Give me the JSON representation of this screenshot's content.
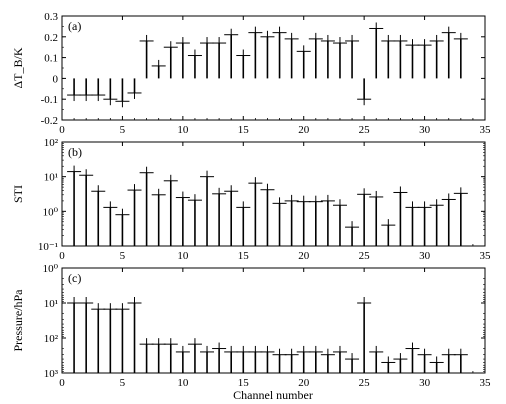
{
  "chart_data": [
    {
      "type": "bar",
      "panel_label": "(a)",
      "ylabel": "ΔT_B/K",
      "xlim": [
        0,
        35
      ],
      "ylim": [
        -0.2,
        0.3
      ],
      "yscale": "linear",
      "xticks": [
        0,
        5,
        10,
        15,
        20,
        25,
        30,
        35
      ],
      "yticks": [
        -0.2,
        -0.1,
        0,
        0.1,
        0.2,
        0.3
      ],
      "ytick_labels": [
        "-0.2",
        "-0.1",
        "0",
        "0.1",
        "0.2",
        "0.3"
      ],
      "x": [
        1,
        2,
        3,
        4,
        5,
        6,
        7,
        8,
        9,
        10,
        11,
        12,
        13,
        14,
        15,
        16,
        17,
        18,
        19,
        20,
        21,
        22,
        23,
        24,
        25,
        26,
        27,
        28,
        29,
        30,
        31,
        32,
        33
      ],
      "values": [
        -0.08,
        -0.08,
        -0.08,
        -0.1,
        -0.11,
        -0.07,
        0.18,
        0.06,
        0.15,
        0.17,
        0.11,
        0.17,
        0.17,
        0.21,
        0.11,
        0.22,
        0.2,
        0.22,
        0.19,
        0.13,
        0.19,
        0.18,
        0.17,
        0.18,
        -0.1,
        0.24,
        0.18,
        0.18,
        0.16,
        0.16,
        0.18,
        0.22,
        0.19
      ]
    },
    {
      "type": "bar",
      "panel_label": "(b)",
      "ylabel": "STI",
      "xlim": [
        0,
        35
      ],
      "ylim": [
        0.1,
        100
      ],
      "yscale": "log",
      "xticks": [
        0,
        5,
        10,
        15,
        20,
        25,
        30,
        35
      ],
      "yticks": [
        0.1,
        1,
        10,
        100
      ],
      "ytick_labels": [
        "10⁻¹",
        "10⁰",
        "10¹",
        "10²"
      ],
      "x": [
        1,
        2,
        3,
        4,
        5,
        6,
        7,
        8,
        9,
        10,
        11,
        12,
        13,
        14,
        15,
        16,
        17,
        18,
        19,
        20,
        21,
        22,
        23,
        24,
        25,
        26,
        27,
        28,
        29,
        30,
        31,
        32,
        33
      ],
      "values": [
        14,
        11,
        3.8,
        1.3,
        0.8,
        4.1,
        13,
        3,
        7.6,
        2.5,
        2.1,
        10,
        3.2,
        3.8,
        1.3,
        6.5,
        4.2,
        1.7,
        2,
        1.9,
        1.9,
        2,
        1.5,
        0.35,
        3.1,
        2.6,
        0.4,
        3.5,
        1.3,
        1.3,
        1.5,
        2.2,
        3.3
      ]
    },
    {
      "type": "bar",
      "panel_label": "(c)",
      "ylabel": "Pressure/hPa",
      "xlabel": "Channel number",
      "xlim": [
        0,
        35
      ],
      "ylim": [
        1000,
        1
      ],
      "yscale": "log-reversed",
      "xticks": [
        0,
        5,
        10,
        15,
        20,
        25,
        30,
        35
      ],
      "yticks": [
        1,
        10,
        100,
        1000
      ],
      "ytick_labels": [
        "10⁰",
        "10¹",
        "10²",
        "10³"
      ],
      "x": [
        1,
        2,
        3,
        4,
        5,
        6,
        7,
        8,
        9,
        10,
        11,
        12,
        13,
        14,
        15,
        16,
        17,
        18,
        19,
        20,
        21,
        22,
        23,
        24,
        25,
        26,
        27,
        28,
        29,
        30,
        31,
        32,
        33
      ],
      "values": [
        10,
        10,
        15,
        15,
        15,
        10,
        150,
        150,
        150,
        250,
        150,
        250,
        200,
        250,
        250,
        250,
        250,
        300,
        300,
        250,
        250,
        300,
        250,
        400,
        10,
        250,
        500,
        400,
        200,
        300,
        500,
        300,
        300
      ]
    }
  ]
}
